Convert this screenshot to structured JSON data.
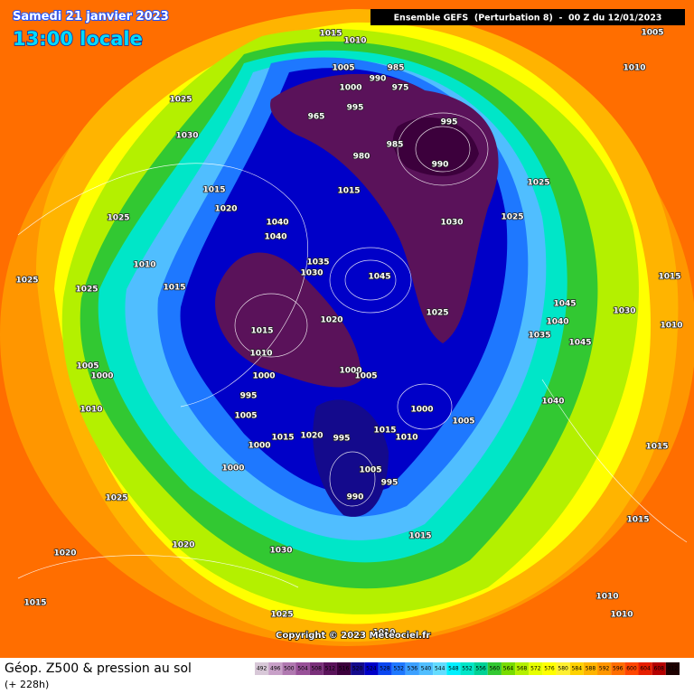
{
  "header": {
    "date": "Samedi 21 janvier 2023",
    "time": "13:00 locale",
    "run_info": "Ensemble GEFS  (Perturbation 8)  -  00 Z du 12/01/2023"
  },
  "footer": {
    "field": "Géop. Z500 & pression au sol",
    "lead_time": "(+ 228h)",
    "copyright": "Copyright © 2023 Meteociel.fr"
  },
  "legend": {
    "levels": [
      492,
      496,
      500,
      504,
      508,
      512,
      516,
      520,
      524,
      528,
      532,
      536,
      540,
      544,
      548,
      552,
      556,
      560,
      564,
      568,
      572,
      576,
      580,
      584,
      588,
      592,
      596,
      600,
      604,
      608,
      612
    ],
    "colors": [
      "#d8c8d8",
      "#c8a0c8",
      "#b078b0",
      "#985098",
      "#7a307a",
      "#5a125a",
      "#3c003c",
      "#140a8c",
      "#0000c8",
      "#0a46f0",
      "#1e78ff",
      "#3ca0ff",
      "#50beff",
      "#64dcff",
      "#00f0ff",
      "#00e6c8",
      "#00d296",
      "#32c832",
      "#78dc00",
      "#b4f000",
      "#e6ff00",
      "#ffff00",
      "#fff032",
      "#ffd200",
      "#ffb400",
      "#ff9600",
      "#ff6e00",
      "#ff4600",
      "#e61e00",
      "#b40000",
      "#1e0000"
    ]
  },
  "map": {
    "isobar_labels": [
      1015,
      1010,
      1005,
      1010,
      1005,
      985,
      990,
      975,
      1000,
      995,
      965,
      985,
      995,
      990,
      980,
      1015,
      1025,
      1025,
      1030,
      1025,
      1030,
      1015,
      1020,
      1025,
      1040,
      1040,
      1010,
      1025,
      1025,
      1015,
      1035,
      1030,
      1045,
      1015,
      1020,
      1025,
      1045,
      1040,
      1030,
      1015,
      1010,
      1035,
      1045,
      1010,
      1005,
      1000,
      1000,
      1000,
      1005,
      995,
      1010,
      1000,
      1005,
      1040,
      1005,
      1015,
      1010,
      1015,
      1020,
      995,
      1000,
      1015,
      1000,
      1005,
      995,
      990,
      1025,
      1015,
      1015,
      1020,
      1030,
      1020,
      1015,
      1010,
      1010,
      1025,
      1010
    ]
  }
}
